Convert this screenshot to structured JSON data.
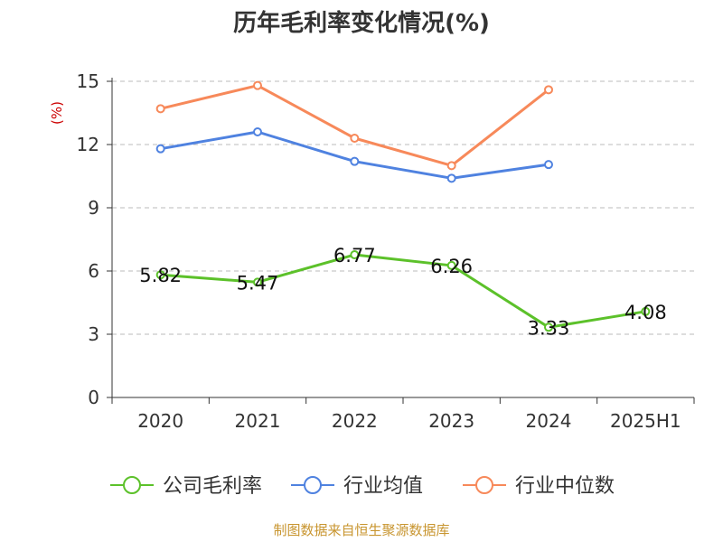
{
  "chart_data": {
    "type": "line",
    "title": "历年毛利率变化情况(%)",
    "ylabel": "(%)",
    "categories": [
      "2020",
      "2021",
      "2022",
      "2023",
      "2024",
      "2025H1"
    ],
    "ylim": [
      0,
      15
    ],
    "yticks": [
      "0",
      "3",
      "6",
      "9",
      "12",
      "15"
    ],
    "grid": true,
    "legend_position": "bottom",
    "series": [
      {
        "name": "公司毛利率",
        "color": "#5cc12a",
        "values": [
          5.82,
          5.47,
          6.77,
          6.26,
          3.33,
          4.08
        ],
        "labels": [
          "5.82",
          "5.47",
          "6.77",
          "6.26",
          "3.33",
          "4.08"
        ]
      },
      {
        "name": "行业均值",
        "color": "#4f82e0",
        "values": [
          11.8,
          12.6,
          11.2,
          10.4,
          11.05,
          null
        ]
      },
      {
        "name": "行业中位数",
        "color": "#f7895a",
        "values": [
          13.7,
          14.8,
          12.3,
          11.0,
          14.6,
          null
        ]
      }
    ]
  },
  "footer": "制图数据来自恒生聚源数据库"
}
